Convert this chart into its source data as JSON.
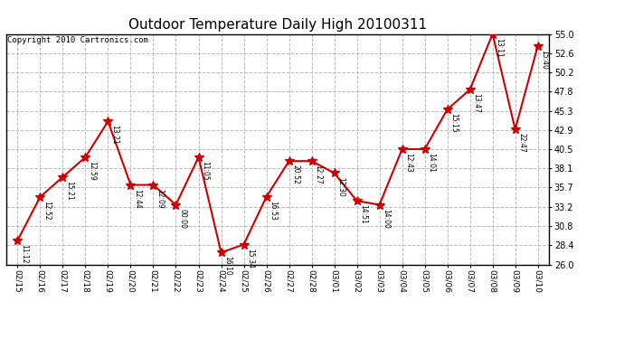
{
  "title": "Outdoor Temperature Daily High 20100311",
  "copyright": "Copyright 2010 Cartronics.com",
  "x_labels": [
    "02/15",
    "02/16",
    "02/17",
    "02/18",
    "02/19",
    "02/20",
    "02/21",
    "02/22",
    "02/23",
    "02/24",
    "02/25",
    "02/26",
    "02/27",
    "02/28",
    "03/01",
    "03/02",
    "03/03",
    "03/04",
    "03/05",
    "03/06",
    "03/07",
    "03/08",
    "03/09",
    "03/10"
  ],
  "y_values": [
    29.0,
    34.5,
    37.0,
    39.5,
    44.0,
    36.0,
    36.0,
    33.5,
    39.5,
    27.5,
    28.5,
    34.5,
    39.0,
    39.0,
    37.5,
    34.0,
    33.5,
    40.5,
    40.5,
    45.5,
    48.0,
    55.0,
    43.0,
    53.5
  ],
  "time_labels": [
    "11:12",
    "12:52",
    "15:21",
    "12:59",
    "13:21",
    "12:44",
    "12:09",
    "00:00",
    "11:05",
    "16:10",
    "15:34",
    "16:53",
    "20:52",
    "12:27",
    "12:30",
    "14:51",
    "14:00",
    "12:43",
    "14:01",
    "15:15",
    "13:47",
    "13:11",
    "22:47",
    "15:40"
  ],
  "ylim_min": 26.0,
  "ylim_max": 55.0,
  "yticks": [
    26.0,
    28.4,
    30.8,
    33.2,
    35.7,
    38.1,
    40.5,
    42.9,
    45.3,
    47.8,
    50.2,
    52.6,
    55.0
  ],
  "line_color": "#cc0000",
  "marker_color": "#cc0000",
  "bg_color": "#ffffff",
  "plot_bg_color": "#ffffff",
  "grid_color": "#bbbbbb",
  "title_fontsize": 11,
  "copyright_fontsize": 6.5
}
